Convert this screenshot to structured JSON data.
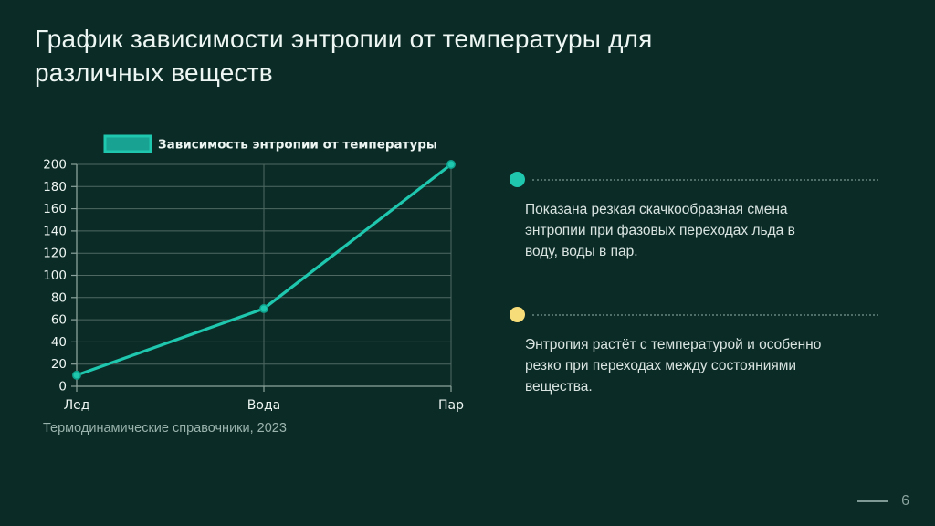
{
  "slide": {
    "title": "График зависимости энтропии от температуры для\nразличных веществ",
    "source_note": "Термодинамические справочники, 2023",
    "page_number": "6",
    "background_color": "#0b2b26",
    "accent_teal": "#1ec7ae",
    "accent_yellow": "#f7dd79"
  },
  "chart_data": {
    "type": "line",
    "title": "",
    "legend": [
      "Зависимость энтропии от температуры"
    ],
    "legend_position": "top",
    "categories": [
      "Лед",
      "Вода",
      "Пар"
    ],
    "series": [
      {
        "name": "Зависимость энтропии от температуры",
        "values": [
          10,
          70,
          200
        ]
      }
    ],
    "xlabel": "",
    "ylabel": "",
    "ylim": [
      0,
      200
    ],
    "yticks": [
      0,
      20,
      40,
      60,
      80,
      100,
      120,
      140,
      160,
      180,
      200
    ],
    "grid": true,
    "line_color": "#1ec7ae",
    "marker_edge_color": "#0fa18d",
    "legend_swatch_fill": "#17a291",
    "grid_color": "#4f6862",
    "axis_color": "#8ca29c",
    "text_color": "#eef6f3"
  },
  "callouts": [
    {
      "bullet_color": "#1ec7ae",
      "text": "Показана резкая скачкообразная смена\nэнтропии при фазовых переходах льда в\nводу, воды в пар."
    },
    {
      "bullet_color": "#f7dd79",
      "text": "Энтропия растёт с температурой и особенно\nрезко при переходах между состояниями\nвещества."
    }
  ]
}
